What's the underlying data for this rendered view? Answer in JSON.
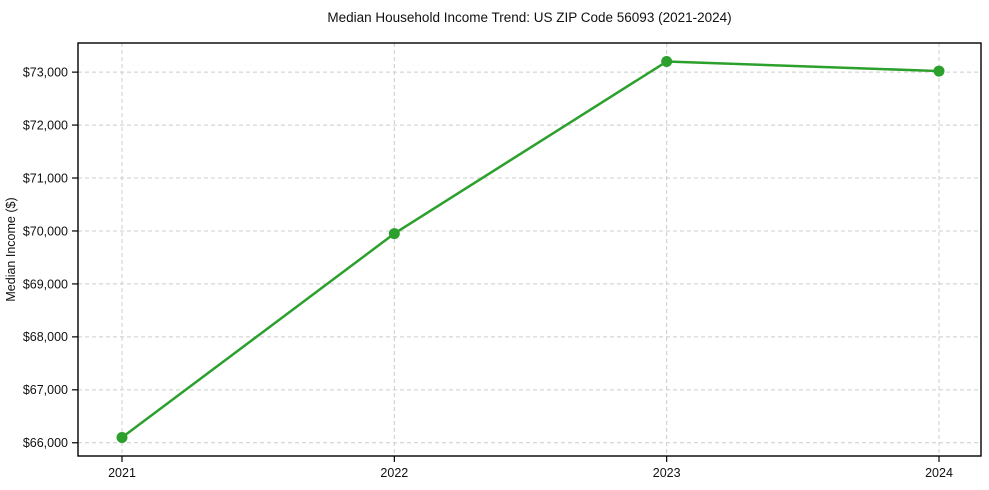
{
  "chart_data": {
    "type": "line",
    "title": "Median Household Income Trend: US ZIP Code 56093 (2021-2024)",
    "xlabel": "",
    "ylabel": "Median Income ($)",
    "categories": [
      "2021",
      "2022",
      "2023",
      "2024"
    ],
    "series": [
      {
        "name": "Median Household Income",
        "values": [
          66100,
          69950,
          73200,
          73020
        ],
        "color": "#2ca02c"
      }
    ],
    "ylim": [
      65750,
      73550
    ],
    "y_ticks": [
      66000,
      67000,
      68000,
      69000,
      70000,
      71000,
      72000,
      73000
    ],
    "y_tick_labels": [
      "$66,000",
      "$67,000",
      "$68,000",
      "$69,000",
      "$70,000",
      "$71,000",
      "$72,000",
      "$73,000"
    ],
    "grid": true,
    "grid_style": "dashed",
    "legend": "none",
    "colors": {
      "line": "#2ca02c",
      "marker": "#2ca02c",
      "grid": "#cccccc",
      "axis": "#000000",
      "text": "#111111",
      "background": "#ffffff"
    }
  }
}
